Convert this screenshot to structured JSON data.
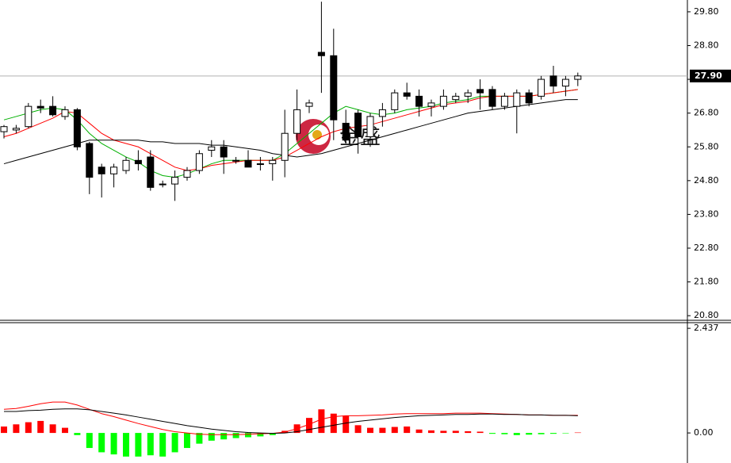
{
  "chart_data": [
    {
      "type": "candlestick",
      "watermark": "金盛",
      "up_color": "#ffffff",
      "down_color": "#000000",
      "open": [
        26.25,
        26.3,
        26.4,
        27.0,
        27.0,
        26.7,
        26.9,
        25.9,
        25.2,
        25.0,
        25.1,
        25.4,
        25.5,
        24.7,
        24.7,
        24.9,
        25.1,
        25.7,
        25.8,
        25.4,
        25.4,
        25.3,
        25.3,
        25.4,
        26.2,
        27.0,
        28.6,
        28.5,
        26.5,
        26.8,
        26.1,
        26.7,
        26.9,
        27.4,
        27.3,
        27.0,
        27.0,
        27.2,
        27.3,
        27.5,
        27.5,
        27.0,
        27.0,
        27.4,
        27.3,
        27.9,
        27.6,
        27.8
      ],
      "high": [
        26.45,
        26.45,
        27.1,
        27.2,
        27.3,
        27.0,
        26.95,
        25.95,
        25.3,
        25.3,
        25.5,
        25.7,
        25.7,
        24.8,
        25.1,
        25.2,
        25.7,
        26.0,
        26.0,
        25.5,
        25.7,
        25.5,
        25.5,
        26.9,
        27.5,
        27.2,
        30.1,
        29.3,
        26.9,
        26.9,
        26.8,
        27.1,
        27.5,
        27.7,
        27.5,
        27.2,
        27.5,
        27.4,
        27.5,
        27.8,
        27.6,
        27.4,
        27.5,
        27.5,
        27.9,
        28.2,
        27.9,
        28.0
      ],
      "low": [
        26.05,
        26.2,
        26.35,
        26.8,
        26.7,
        26.6,
        25.7,
        24.4,
        24.3,
        24.6,
        25.0,
        25.1,
        24.5,
        24.6,
        24.2,
        24.8,
        25.0,
        25.5,
        25.0,
        25.3,
        25.2,
        25.1,
        24.8,
        24.9,
        26.0,
        26.8,
        27.4,
        26.0,
        25.9,
        25.6,
        25.8,
        26.4,
        26.8,
        27.2,
        26.7,
        26.7,
        26.9,
        27.1,
        27.1,
        26.9,
        26.9,
        26.9,
        26.2,
        27.0,
        27.2,
        27.4,
        27.3,
        27.6
      ],
      "close": [
        26.4,
        26.35,
        27.0,
        26.95,
        26.75,
        26.9,
        25.8,
        24.9,
        25.0,
        25.2,
        25.4,
        25.3,
        24.6,
        24.7,
        24.9,
        25.1,
        25.6,
        25.8,
        25.5,
        25.4,
        25.2,
        25.3,
        25.4,
        26.2,
        26.9,
        27.1,
        28.5,
        26.6,
        26.0,
        26.1,
        26.7,
        26.9,
        27.4,
        27.3,
        27.0,
        27.1,
        27.3,
        27.3,
        27.4,
        27.4,
        27.0,
        27.3,
        27.4,
        27.1,
        27.8,
        27.6,
        27.8,
        27.9
      ],
      "series": [
        {
          "color": "#00b000",
          "values": [
            26.6,
            26.7,
            26.8,
            26.9,
            26.95,
            26.9,
            26.6,
            26.2,
            25.9,
            25.7,
            25.5,
            25.35,
            25.1,
            24.95,
            24.9,
            25.0,
            25.15,
            25.3,
            25.4,
            25.4,
            25.4,
            25.4,
            25.4,
            25.6,
            25.9,
            26.2,
            26.5,
            26.8,
            27.0,
            26.9,
            26.8,
            26.75,
            26.8,
            26.9,
            26.95,
            27.0,
            27.1,
            27.15,
            27.2,
            27.3,
            27.3,
            27.3,
            27.3,
            27.3,
            27.35,
            27.4,
            27.45,
            27.5
          ]
        },
        {
          "color": "#ff0000",
          "values": [
            26.1,
            26.2,
            26.35,
            26.5,
            26.65,
            26.85,
            26.8,
            26.5,
            26.2,
            26.0,
            25.9,
            25.8,
            25.6,
            25.4,
            25.2,
            25.1,
            25.15,
            25.25,
            25.3,
            25.35,
            25.4,
            25.4,
            25.4,
            25.5,
            25.7,
            25.9,
            26.1,
            26.25,
            26.35,
            26.4,
            26.45,
            26.55,
            26.65,
            26.75,
            26.85,
            26.95,
            27.05,
            27.1,
            27.15,
            27.25,
            27.3,
            27.3,
            27.3,
            27.3,
            27.35,
            27.4,
            27.45,
            27.5
          ]
        },
        {
          "color": "#000000",
          "values": [
            25.3,
            25.4,
            25.5,
            25.6,
            25.7,
            25.8,
            25.9,
            26.0,
            26.0,
            26.0,
            26.0,
            26.0,
            25.95,
            25.95,
            25.9,
            25.9,
            25.9,
            25.85,
            25.85,
            25.8,
            25.75,
            25.7,
            25.6,
            25.55,
            25.5,
            25.55,
            25.6,
            25.7,
            25.8,
            25.9,
            26.0,
            26.1,
            26.2,
            26.3,
            26.4,
            26.5,
            26.6,
            26.7,
            26.8,
            26.85,
            26.9,
            26.95,
            27.0,
            27.05,
            27.1,
            27.15,
            27.2,
            27.2
          ]
        }
      ],
      "price_marker": {
        "value": 27.9,
        "label": "27.90"
      },
      "ylim": [
        20.64,
        30.15
      ],
      "yticks": [
        {
          "value": 20.8,
          "label": "20.80"
        },
        {
          "value": 21.8,
          "label": "21.80"
        },
        {
          "value": 22.8,
          "label": "22.80"
        },
        {
          "value": 23.8,
          "label": "23.80"
        },
        {
          "value": 24.8,
          "label": "24.80"
        },
        {
          "value": 25.8,
          "label": "25.80"
        },
        {
          "value": 26.8,
          "label": "26.80"
        },
        {
          "value": 27.8,
          "label": "27.80"
        },
        {
          "value": 28.8,
          "label": "28.80"
        },
        {
          "value": 29.8,
          "label": "29.80"
        }
      ]
    },
    {
      "type": "bar",
      "positive_color": "#ff0000",
      "negative_color": "#00ff00",
      "values": [
        0.15,
        0.2,
        0.25,
        0.28,
        0.2,
        0.12,
        -0.05,
        -0.35,
        -0.45,
        -0.5,
        -0.55,
        -0.55,
        -0.52,
        -0.55,
        -0.45,
        -0.35,
        -0.25,
        -0.18,
        -0.15,
        -0.12,
        -0.1,
        -0.08,
        -0.05,
        0.05,
        0.2,
        0.35,
        0.55,
        0.45,
        0.4,
        0.18,
        0.12,
        0.12,
        0.14,
        0.15,
        0.08,
        0.06,
        0.05,
        0.05,
        0.04,
        0.03,
        -0.02,
        -0.03,
        -0.05,
        -0.04,
        -0.03,
        -0.02,
        -0.01,
        0.01
      ],
      "series": [
        {
          "color": "#ff0000",
          "values": [
            0.55,
            0.57,
            0.62,
            0.68,
            0.72,
            0.72,
            0.65,
            0.55,
            0.45,
            0.38,
            0.3,
            0.22,
            0.15,
            0.08,
            0.03,
            0.0,
            -0.03,
            -0.04,
            -0.04,
            -0.04,
            -0.03,
            -0.02,
            -0.01,
            0.02,
            0.1,
            0.2,
            0.32,
            0.38,
            0.4,
            0.4,
            0.41,
            0.42,
            0.44,
            0.45,
            0.45,
            0.45,
            0.45,
            0.46,
            0.46,
            0.46,
            0.45,
            0.44,
            0.43,
            0.42,
            0.42,
            0.41,
            0.41,
            0.41
          ]
        },
        {
          "color": "#000000",
          "values": [
            0.5,
            0.5,
            0.52,
            0.53,
            0.55,
            0.56,
            0.56,
            0.54,
            0.5,
            0.46,
            0.42,
            0.37,
            0.32,
            0.27,
            0.22,
            0.17,
            0.13,
            0.09,
            0.06,
            0.03,
            0.01,
            0.0,
            -0.01,
            0.0,
            0.03,
            0.08,
            0.13,
            0.18,
            0.23,
            0.27,
            0.3,
            0.33,
            0.36,
            0.38,
            0.4,
            0.41,
            0.42,
            0.43,
            0.43,
            0.44,
            0.44,
            0.43,
            0.43,
            0.42,
            0.42,
            0.41,
            0.41,
            0.4
          ]
        }
      ],
      "ylim": [
        -0.7,
        2.55
      ],
      "yticks": [
        {
          "value": 0,
          "label": "0.00"
        },
        {
          "value": 2.437,
          "label": "2.437"
        }
      ]
    }
  ]
}
